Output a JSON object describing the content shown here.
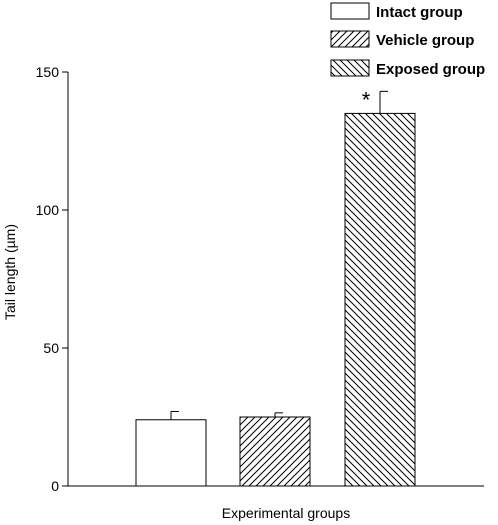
{
  "chart_data": {
    "type": "bar",
    "categories": [
      "Intact group",
      "Vehicle group",
      "Exposed group"
    ],
    "values": [
      24,
      25,
      135
    ],
    "errors": [
      3,
      1.5,
      8
    ],
    "significance": [
      "",
      "",
      "*"
    ],
    "fills": [
      "none",
      "diagonal-forward",
      "diagonal-back"
    ],
    "xlabel": "Experimental groups",
    "ylabel": "Tail length (µm)",
    "ylim": [
      0,
      150
    ],
    "yticks": [
      0,
      50,
      100,
      150
    ],
    "legend": {
      "position": "top-right",
      "entries": [
        "Intact group",
        "Vehicle group",
        "Exposed group"
      ]
    },
    "grid": false
  }
}
